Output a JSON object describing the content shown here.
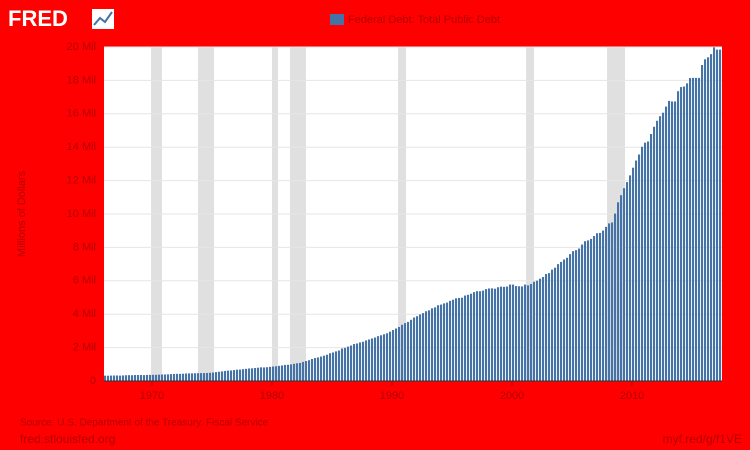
{
  "chart_data": {
    "type": "bar",
    "logo": "FRED",
    "series": [
      {
        "name": "Federal Debt: Total Public Debt",
        "color": "#4572a7",
        "values": [
          320000,
          317000,
          324000,
          329000,
          330000,
          322000,
          334000,
          345000,
          348000,
          346000,
          357000,
          358000,
          360000,
          353000,
          363000,
          368000,
          371000,
          370000,
          379000,
          389000,
          391000,
          398000,
          412000,
          424000,
          428000,
          427000,
          437000,
          449000,
          456000,
          458000,
          463000,
          469000,
          474000,
          474000,
          482000,
          492000,
          509000,
          533000,
          554000,
          576000,
          600000,
          620000,
          633000,
          653000,
          680000,
          685000,
          709000,
          729000,
          750000,
          758000,
          780000,
          797000,
          819000,
          812000,
          826000,
          846000,
          868000,
          883000,
          907000,
          930000,
          964000,
          971000,
          997000,
          1028000,
          1062000,
          1080000,
          1142000,
          1197000,
          1245000,
          1320000,
          1377000,
          1410000,
          1464000,
          1518000,
          1572000,
          1663000,
          1710000,
          1774000,
          1823000,
          1945000,
          1986000,
          2059000,
          2125000,
          2214000,
          2246000,
          2309000,
          2350000,
          2431000,
          2487000,
          2547000,
          2602000,
          2684000,
          2739000,
          2799000,
          2857000,
          2953000,
          3052000,
          3143000,
          3233000,
          3365000,
          3466000,
          3538000,
          3665000,
          3801000,
          3881000,
          3984000,
          4065000,
          4177000,
          4231000,
          4352000,
          4411000,
          4536000,
          4575000,
          4646000,
          4693000,
          4800000,
          4865000,
          4951000,
          4974000,
          4989000,
          5118000,
          5161000,
          5225000,
          5323000,
          5380000,
          5376000,
          5413000,
          5502000,
          5542000,
          5548000,
          5526000,
          5614000,
          5651000,
          5638000,
          5656000,
          5776000,
          5773000,
          5686000,
          5674000,
          5662000,
          5773000,
          5727000,
          5807000,
          5943000,
          6006000,
          6126000,
          6228000,
          6405000,
          6460000,
          6670000,
          6783000,
          6998000,
          7131000,
          7274000,
          7379000,
          7596000,
          7777000,
          7836000,
          7933000,
          8170000,
          8371000,
          8420000,
          8507000,
          8680000,
          8849000,
          8867000,
          9008000,
          9229000,
          9437000,
          9492000,
          10025000,
          10700000,
          11127000,
          11545000,
          11910000,
          12311000,
          12773000,
          13202000,
          13562000,
          14025000,
          14270000,
          14343000,
          14790000,
          15223000,
          15582000,
          15856000,
          16066000,
          16433000,
          16771000,
          16738000,
          16738000,
          17352000,
          17601000,
          17633000,
          17824000,
          18141000,
          18152000,
          18152000,
          18151000,
          18922000,
          19264000,
          19382000,
          19573000,
          19977000,
          19846000,
          19845000
        ]
      }
    ],
    "x": [
      1966,
      1966.25,
      1966.5,
      1966.75,
      1967,
      1967.25,
      1967.5,
      1967.75,
      1968,
      1968.25,
      1968.5,
      1968.75,
      1969,
      1969.25,
      1969.5,
      1969.75,
      1970,
      1970.25,
      1970.5,
      1970.75,
      1971,
      1971.25,
      1971.5,
      1971.75,
      1972,
      1972.25,
      1972.5,
      1972.75,
      1973,
      1973.25,
      1973.5,
      1973.75,
      1974,
      1974.25,
      1974.5,
      1974.75,
      1975,
      1975.25,
      1975.5,
      1975.75,
      1976,
      1976.25,
      1976.5,
      1976.75,
      1977,
      1977.25,
      1977.5,
      1977.75,
      1978,
      1978.25,
      1978.5,
      1978.75,
      1979,
      1979.25,
      1979.5,
      1979.75,
      1980,
      1980.25,
      1980.5,
      1980.75,
      1981,
      1981.25,
      1981.5,
      1981.75,
      1982,
      1982.25,
      1982.5,
      1982.75,
      1983,
      1983.25,
      1983.5,
      1983.75,
      1984,
      1984.25,
      1984.5,
      1984.75,
      1985,
      1985.25,
      1985.5,
      1985.75,
      1986,
      1986.25,
      1986.5,
      1986.75,
      1987,
      1987.25,
      1987.5,
      1987.75,
      1988,
      1988.25,
      1988.5,
      1988.75,
      1989,
      1989.25,
      1989.5,
      1989.75,
      1990,
      1990.25,
      1990.5,
      1990.75,
      1991,
      1991.25,
      1991.5,
      1991.75,
      1992,
      1992.25,
      1992.5,
      1992.75,
      1993,
      1993.25,
      1993.5,
      1993.75,
      1994,
      1994.25,
      1994.5,
      1994.75,
      1995,
      1995.25,
      1995.5,
      1995.75,
      1996,
      1996.25,
      1996.5,
      1996.75,
      1997,
      1997.25,
      1997.5,
      1997.75,
      1998,
      1998.25,
      1998.5,
      1998.75,
      1999,
      1999.25,
      1999.5,
      1999.75,
      2000,
      2000.25,
      2000.5,
      2000.75,
      2001,
      2001.25,
      2001.5,
      2001.75,
      2002,
      2002.25,
      2002.5,
      2002.75,
      2003,
      2003.25,
      2003.5,
      2003.75,
      2004,
      2004.25,
      2004.5,
      2004.75,
      2005,
      2005.25,
      2005.5,
      2005.75,
      2006,
      2006.25,
      2006.5,
      2006.75,
      2007,
      2007.25,
      2007.5,
      2007.75,
      2008,
      2008.25,
      2008.5,
      2008.75,
      2009,
      2009.25,
      2009.5,
      2009.75,
      2010,
      2010.25,
      2010.5,
      2010.75,
      2011,
      2011.25,
      2011.5,
      2011.75,
      2012,
      2012.25,
      2012.5,
      2012.75,
      2013,
      2013.25,
      2013.5,
      2013.75,
      2014,
      2014.25,
      2014.5,
      2014.75,
      2015,
      2015.25,
      2015.5,
      2015.75,
      2016,
      2016.25,
      2016.5,
      2016.75,
      2017,
      2017.25
    ],
    "recessions": [
      [
        1969.92,
        1970.83
      ],
      [
        1973.83,
        1975.17
      ],
      [
        1980.0,
        1980.5
      ],
      [
        1981.5,
        1982.83
      ],
      [
        1990.5,
        1991.17
      ],
      [
        2001.17,
        2001.83
      ],
      [
        2007.92,
        2009.42
      ]
    ],
    "recession_color": "#e0e0e0",
    "y_label": "Millions of Dollars",
    "xlim": [
      1966,
      2017.5
    ],
    "xticks": [
      1970,
      1980,
      1990,
      2000,
      2010
    ],
    "ylim": [
      0,
      20000000
    ],
    "yticks": [
      0,
      {
        "value": 2000000,
        "label": "2 Mil"
      },
      {
        "value": 4000000,
        "label": "4 Mil"
      },
      {
        "value": 6000000,
        "label": "6 Mil"
      },
      {
        "value": 8000000,
        "label": "8 Mil"
      },
      {
        "value": 10000000,
        "label": "10 Mil"
      },
      {
        "value": 12000000,
        "label": "12 Mil"
      },
      {
        "value": 14000000,
        "label": "14 Mil"
      },
      {
        "value": 16000000,
        "label": "16 Mil"
      },
      {
        "value": 18000000,
        "label": "18 Mil"
      },
      {
        "value": 20000000,
        "label": "20 Mil"
      }
    ],
    "grid": true,
    "source": "Source: U.S. Department of the Treasury. Fiscal Service",
    "site": "fred.stlouisfed.org",
    "link": "myf.red/g/f1VE"
  }
}
